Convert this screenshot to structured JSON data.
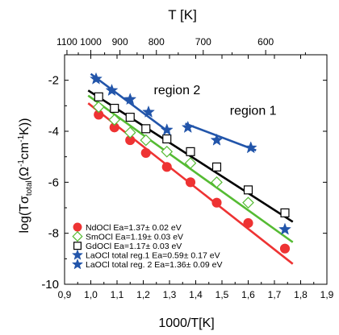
{
  "chart_data": {
    "type": "scatter",
    "title": "",
    "xlabel": "1000/T[K]",
    "ylabel_parts": {
      "prefix": "log(T",
      "sigma": "σ",
      "sigma_sub": "total",
      "open": "(",
      "omega": "Ω",
      "omega_sup": "-1",
      "cm": "cm",
      "cm_sup": "-1",
      "suffix": "K))"
    },
    "top_axis_label": "T [K]",
    "xlim": [
      0.9,
      1.9
    ],
    "ylim": [
      -10,
      -1
    ],
    "x_ticks": [
      "0,9",
      "1,0",
      "1,1",
      "1,2",
      "1,3",
      "1,4",
      "1,5",
      "1,6",
      "1,7",
      "1,8",
      "1,9"
    ],
    "y_ticks": [
      {
        "value": -10,
        "label": "-10"
      },
      {
        "value": -8,
        "label": "-8"
      },
      {
        "value": -6,
        "label": "-6"
      },
      {
        "value": -4,
        "label": "-4"
      },
      {
        "value": -2,
        "label": "-2"
      }
    ],
    "top_ticks": [
      {
        "T": 1100,
        "label": "1100"
      },
      {
        "T": 1000,
        "label": "1000"
      },
      {
        "T": 900,
        "label": "900"
      },
      {
        "T": 800,
        "label": "800"
      },
      {
        "T": 700,
        "label": "700"
      },
      {
        "T": 600,
        "label": "600"
      }
    ],
    "annotations": [
      {
        "text": "region 2",
        "x": 1.24,
        "y": -2.55
      },
      {
        "text": "region 1",
        "x": 1.53,
        "y": -3.35
      }
    ],
    "legend_position": "bottom-left",
    "series": [
      {
        "name": "NdOCl",
        "legend": "NdOCl  Ea=1.37± 0.02 eV",
        "marker": "filled-circle",
        "color": "#ee3333",
        "x": [
          1.03,
          1.09,
          1.15,
          1.21,
          1.29,
          1.38,
          1.48,
          1.6,
          1.74
        ],
        "y": [
          -3.35,
          -3.85,
          -4.35,
          -4.85,
          -5.4,
          -6.0,
          -6.8,
          -7.6,
          -8.6
        ]
      },
      {
        "name": "SmOCl",
        "legend": "SmOCl  Ea=1.19± 0.03 eV",
        "marker": "open-diamond",
        "color": "#55bb33",
        "x": [
          1.03,
          1.09,
          1.15,
          1.21,
          1.29,
          1.38,
          1.48,
          1.6
        ],
        "y": [
          -3.05,
          -3.55,
          -4.05,
          -4.35,
          -4.8,
          -5.25,
          -6.0,
          -6.8
        ]
      },
      {
        "name": "GdOCl",
        "legend": "GdOCl  Ea=1.17± 0.03 eV",
        "marker": "open-square",
        "color": "#000000",
        "x": [
          1.03,
          1.09,
          1.15,
          1.21,
          1.29,
          1.38,
          1.48,
          1.6,
          1.74
        ],
        "y": [
          -2.65,
          -3.1,
          -3.45,
          -3.9,
          -4.3,
          -4.8,
          -5.4,
          -6.3,
          -7.2
        ]
      },
      {
        "name": "LaOCl total reg.1",
        "legend": "LaOCl total reg.1 Ea=0.59± 0.17 eV",
        "marker": "filled-star",
        "color": "#2255aa",
        "x": [
          1.37,
          1.48,
          1.61
        ],
        "y": [
          -3.85,
          -4.35,
          -4.65
        ]
      },
      {
        "name": "LaOCl total reg. 2",
        "legend": "LaOCl total reg. 2 Ea=1.36± 0.09 eV",
        "marker": "filled-star",
        "color": "#2255aa",
        "x": [
          1.02,
          1.08,
          1.15,
          1.22,
          1.29,
          1.74
        ],
        "y": [
          -1.95,
          -2.4,
          -2.75,
          -3.25,
          -3.95,
          -7.85
        ]
      }
    ],
    "fit_lines": [
      {
        "series": "NdOCl",
        "color": "#ee3333",
        "x": [
          0.99,
          1.77
        ],
        "y": [
          -2.9,
          -9.2
        ]
      },
      {
        "series": "SmOCl",
        "color": "#55bb33",
        "x": [
          0.99,
          1.77
        ],
        "y": [
          -2.6,
          -8.35
        ]
      },
      {
        "series": "GdOCl",
        "color": "#000000",
        "x": [
          0.99,
          1.77
        ],
        "y": [
          -2.4,
          -7.55
        ]
      },
      {
        "series": "LaOCl total reg. 2",
        "color": "#2255aa",
        "x": [
          1.0,
          1.3
        ],
        "y": [
          -1.75,
          -4.05
        ]
      },
      {
        "series": "LaOCl total reg.1",
        "color": "#2255aa",
        "x": [
          1.36,
          1.63
        ],
        "y": [
          -3.7,
          -4.75
        ]
      }
    ]
  }
}
